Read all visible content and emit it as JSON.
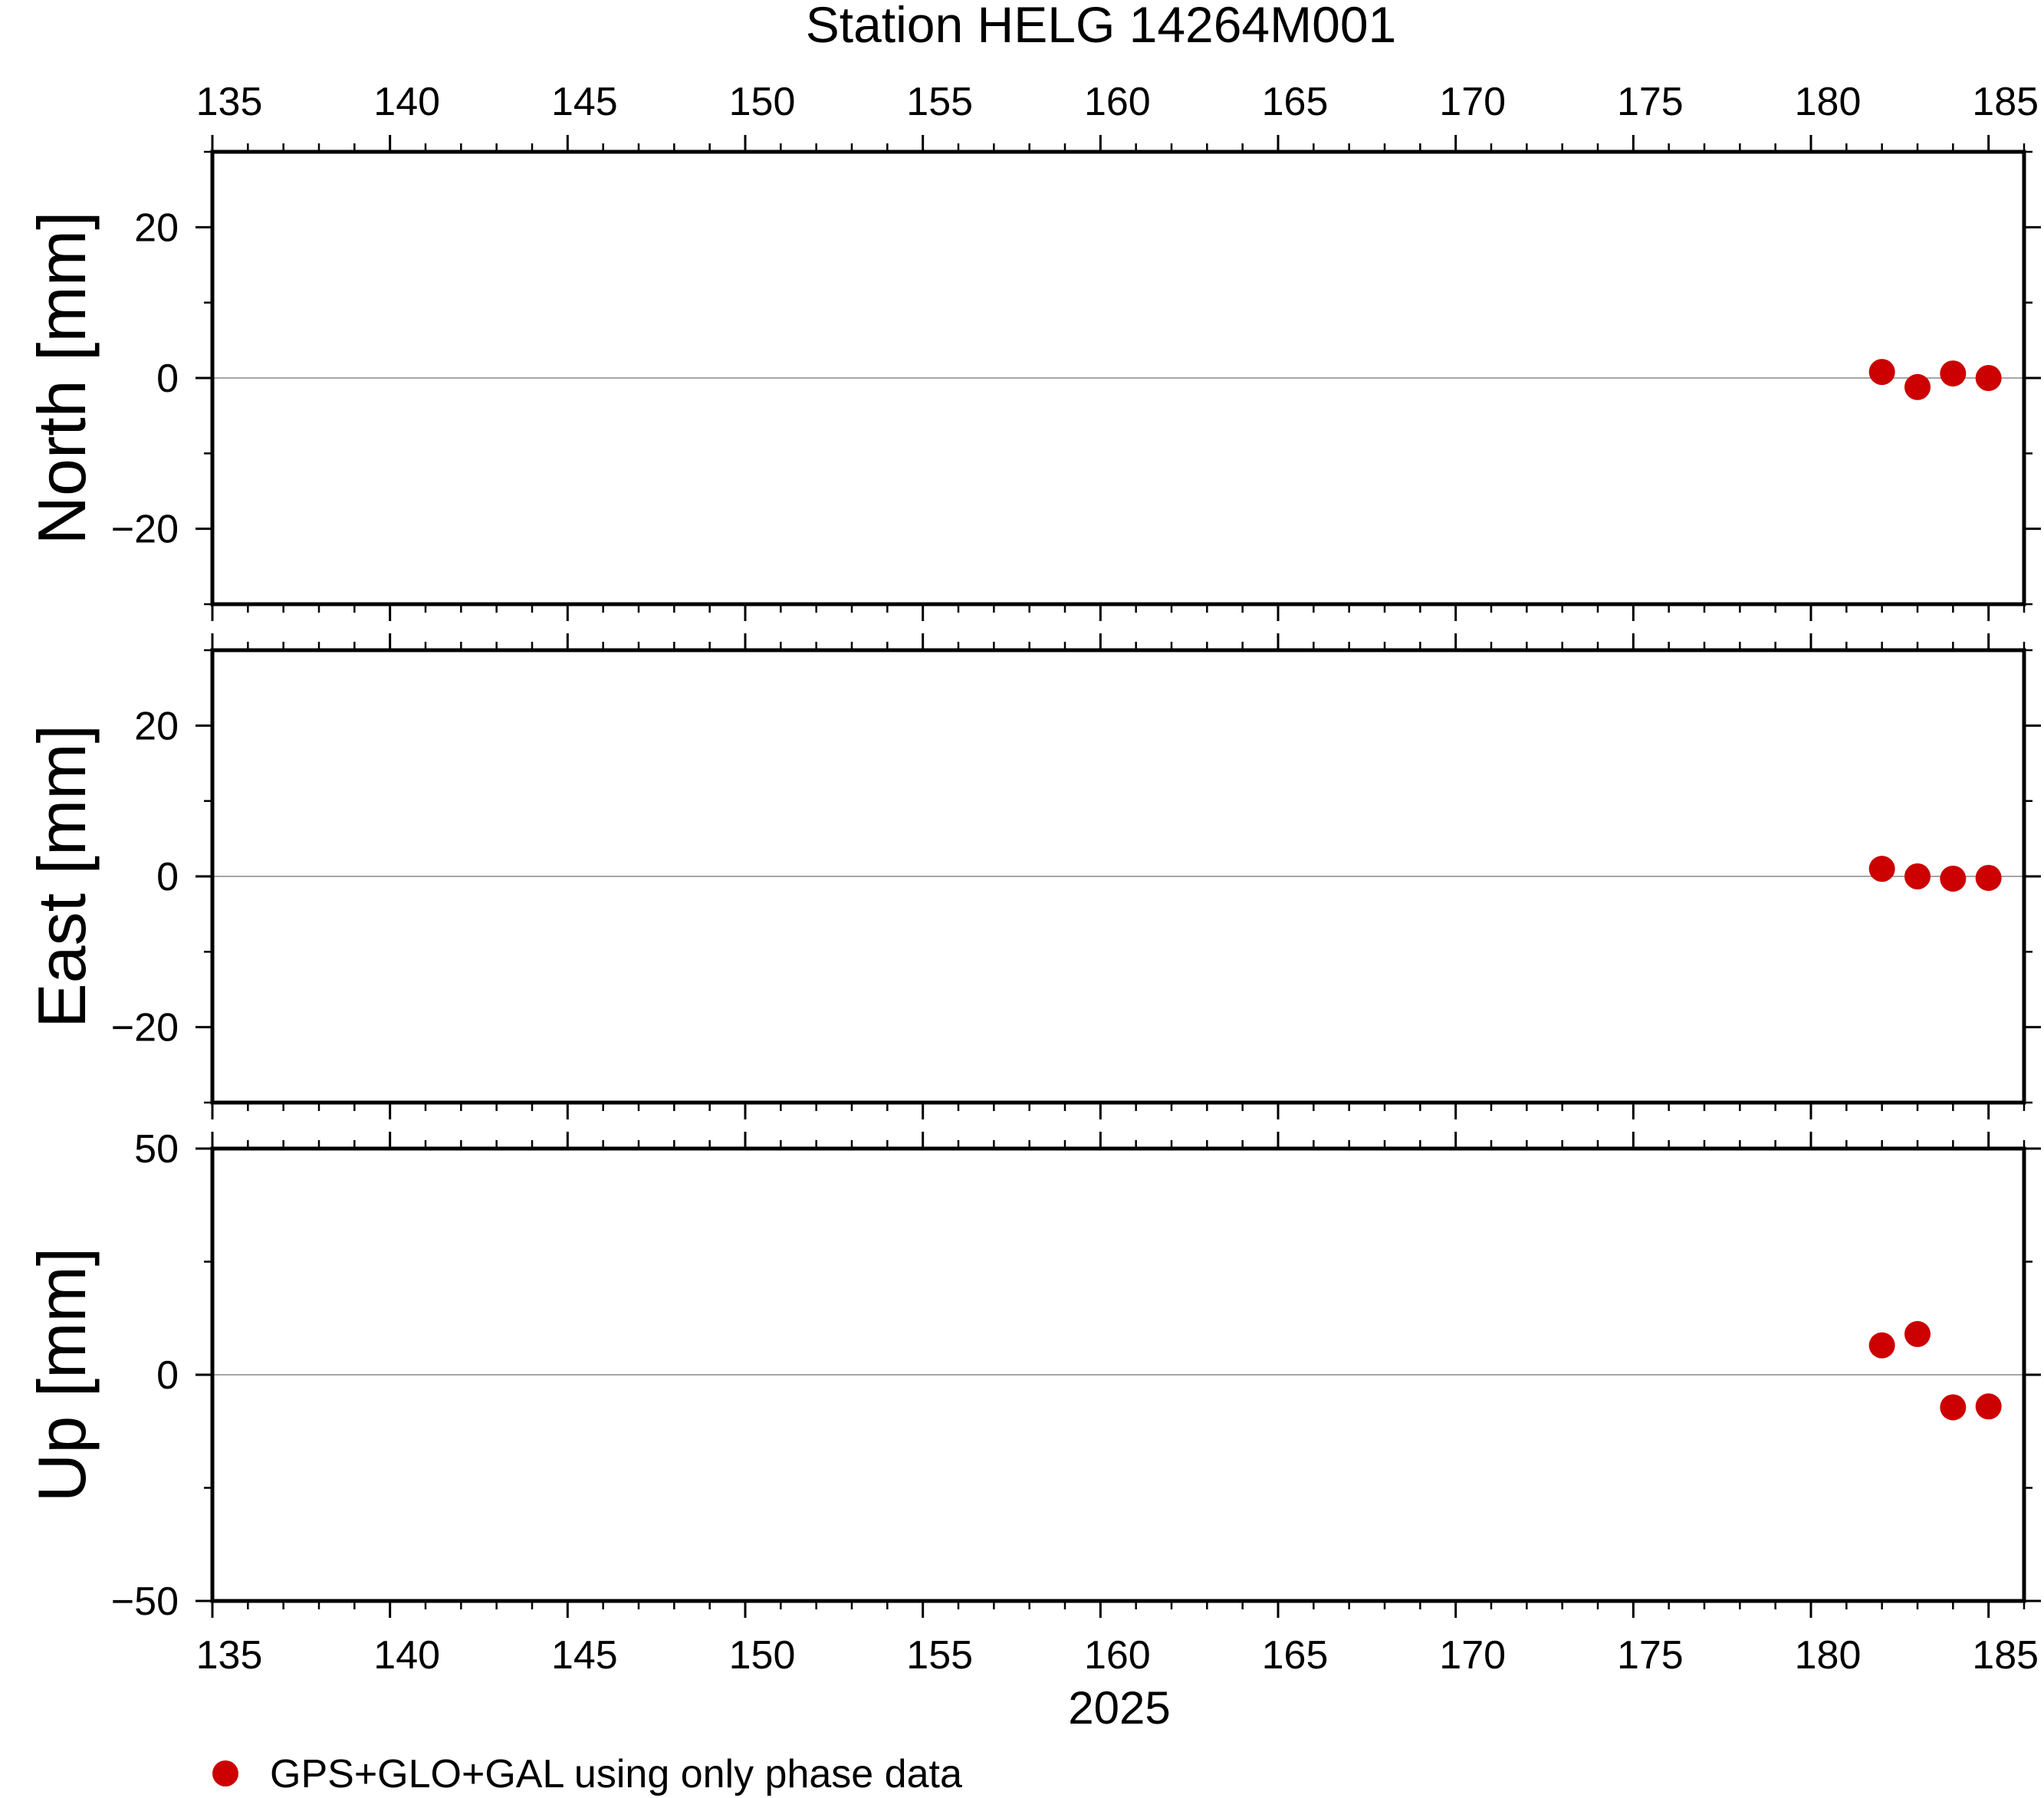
{
  "chart_data": {
    "type": "scatter",
    "title": "Station HELG 14264M001",
    "xlabel": "2025",
    "xlim": [
      135,
      186
    ],
    "x_ticks": [
      "135",
      "140",
      "145",
      "150",
      "155",
      "160",
      "165",
      "170",
      "175",
      "180",
      "185"
    ],
    "grid": false,
    "legend_position": "bottom-left",
    "marker_color": "#cc0000",
    "legend": {
      "label": "GPS+GLO+GAL using only phase data"
    },
    "panels": [
      {
        "ylabel": "North [mm]",
        "ylim": [
          -30,
          30
        ],
        "y_ticks": [
          "20",
          "0",
          "−20"
        ],
        "y_tick_values": [
          20,
          0,
          -20
        ],
        "x": [
          182,
          183,
          184,
          185
        ],
        "y": [
          0.8,
          -1.2,
          0.6,
          0.0
        ]
      },
      {
        "ylabel": "East [mm]",
        "ylim": [
          -30,
          30
        ],
        "y_ticks": [
          "20",
          "0",
          "−20"
        ],
        "y_tick_values": [
          20,
          0,
          -20
        ],
        "x": [
          182,
          183,
          184,
          185
        ],
        "y": [
          1.0,
          0.0,
          -0.3,
          -0.2
        ]
      },
      {
        "ylabel": "Up [mm]",
        "ylim": [
          -50,
          50
        ],
        "y_ticks": [
          "50",
          "0",
          "−50"
        ],
        "y_tick_values": [
          50,
          0,
          -50
        ],
        "x": [
          182,
          183,
          184,
          185
        ],
        "y": [
          6.5,
          9.0,
          -7.2,
          -7.0
        ]
      }
    ]
  }
}
